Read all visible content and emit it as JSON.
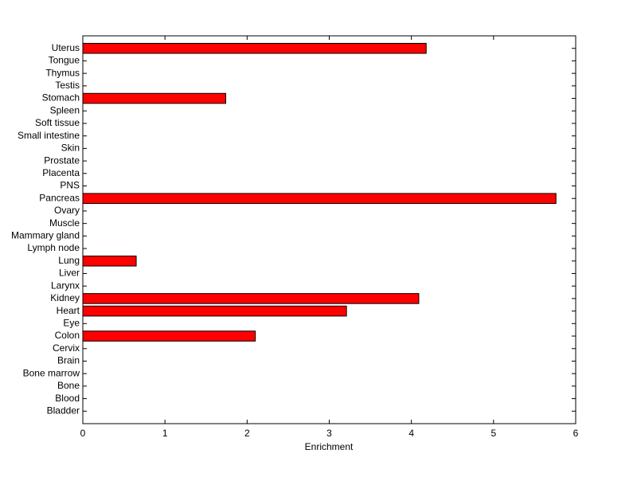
{
  "chart_data": {
    "type": "barh",
    "xlabel": "Enrichment",
    "categories": [
      "Bladder",
      "Blood",
      "Bone",
      "Bone marrow",
      "Brain",
      "Cervix",
      "Colon",
      "Eye",
      "Heart",
      "Kidney",
      "Larynx",
      "Liver",
      "Lung",
      "Lymph node",
      "Mammary gland",
      "Muscle",
      "Ovary",
      "Pancreas",
      "PNS",
      "Placenta",
      "Prostate",
      "Skin",
      "Small intestine",
      "Soft tissue",
      "Spleen",
      "Stomach",
      "Testis",
      "Thymus",
      "Tongue",
      "Uterus"
    ],
    "values": [
      0,
      0,
      0,
      0,
      0,
      0,
      2.1,
      0,
      3.21,
      4.09,
      0,
      0,
      0.65,
      0,
      0,
      0,
      0,
      5.76,
      0,
      0,
      0,
      0,
      0,
      0,
      0,
      1.74,
      0,
      0,
      0,
      4.18
    ],
    "color": "#ff0000",
    "xlim": [
      0,
      6
    ],
    "xticks": [
      0,
      1,
      2,
      3,
      4,
      5,
      6
    ],
    "grid": false
  }
}
